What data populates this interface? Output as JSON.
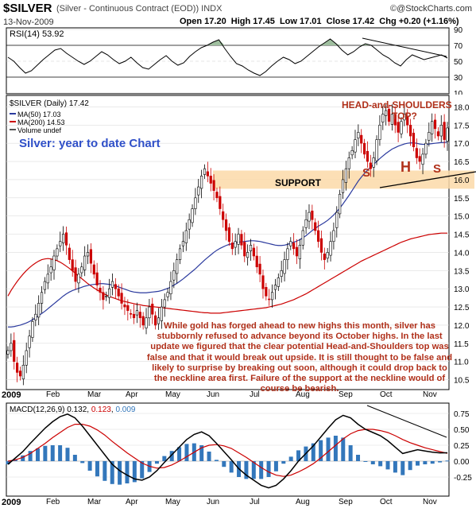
{
  "header": {
    "symbol": "$SILVER",
    "name": "(Silver - Continuous Contract (EOD))",
    "exchange": "INDX",
    "date": "13-Nov-2009",
    "ohlc": "Open 17.20  High 17.45  Low 17.01  Close 17.42  Chg +0.20 (+1.16%)",
    "copyright": "@StockCharts.com",
    "copyright_symbol": "©"
  },
  "colors": {
    "price_up": "#000000",
    "price_down": "#cc0000",
    "ma50": "#2b3a9e",
    "ma200": "#cc0000",
    "rsi_fill": "#9fbf9f",
    "macd_line": "#000000",
    "signal_line": "#cc0000",
    "histogram": "#3377bb",
    "support_band": "#fbd9a8",
    "annotation": "#b0301a",
    "title_blue": "#3050c8"
  },
  "annotations": {
    "chart_title": "Silver: year to date Chart",
    "hs_title_line1": "HEAD-and-SHOULDERS",
    "hs_title_line2": "TOP?",
    "support": "SUPPORT",
    "s_left": "S",
    "h": "H",
    "s_right": "S",
    "comment": "While gold has forged ahead to new highs this month, silver has stubbornly refused to advance beyond its October highs. In the last update we figured that the clear potential Head-and-Shoulders top was false and that it would break out upside. It is still thought to be false and likely to surprise by breaking out soon, although it could drop back to the neckline area first. Failure of the support at the neckline would of course be bearish."
  },
  "chart_data": [
    {
      "type": "line",
      "panel": "rsi",
      "legend": "RSI(14) 53.92",
      "ylim": [
        10,
        90
      ],
      "yticks": [
        10,
        30,
        50,
        70,
        90
      ],
      "levels": [
        30,
        70
      ],
      "grid": true,
      "values": [
        55,
        50,
        42,
        35,
        38,
        45,
        52,
        58,
        64,
        66,
        60,
        55,
        50,
        46,
        50,
        56,
        62,
        58,
        52,
        47,
        50,
        55,
        48,
        42,
        40,
        46,
        52,
        57,
        50,
        45,
        48,
        56,
        62,
        67,
        70,
        74,
        77,
        66,
        56,
        47,
        44,
        39,
        35,
        32,
        37,
        44,
        50,
        55,
        52,
        47,
        50,
        56,
        62,
        68,
        73,
        78,
        72,
        64,
        58,
        62,
        68,
        72,
        70,
        64,
        58,
        54,
        48,
        44,
        52,
        58,
        55,
        52,
        54,
        56,
        58,
        54
      ]
    },
    {
      "type": "candlestick",
      "panel": "price",
      "title": "$SILVER (Daily) 17.42",
      "legend": [
        "MA(50) 17.03",
        "MA(200) 14.53",
        "Volume undef"
      ],
      "ylim": [
        10.25,
        18.25
      ],
      "yticks": [
        10.5,
        11.0,
        11.5,
        12.0,
        12.5,
        13.0,
        13.5,
        14.0,
        14.5,
        15.0,
        15.5,
        16.0,
        16.5,
        17.0,
        17.5,
        18.0
      ],
      "support_band": [
        15.75,
        16.25
      ],
      "grid": true,
      "close": [
        11.3,
        11.5,
        11.0,
        10.7,
        10.6,
        10.9,
        11.3,
        11.7,
        12.1,
        12.3,
        12.6,
        12.9,
        13.2,
        13.4,
        13.6,
        13.9,
        14.1,
        14.3,
        14.5,
        14.2,
        13.8,
        13.5,
        13.2,
        13.4,
        13.6,
        13.9,
        14.0,
        13.7,
        13.4,
        13.1,
        12.9,
        12.7,
        12.8,
        13.0,
        13.2,
        13.0,
        12.8,
        12.6,
        12.5,
        12.4,
        12.3,
        12.2,
        12.4,
        12.2,
        12.0,
        12.2,
        12.5,
        12.3,
        12.0,
        12.2,
        12.5,
        12.7,
        12.9,
        13.2,
        13.5,
        13.8,
        14.1,
        14.3,
        14.6,
        14.9,
        15.2,
        15.5,
        15.8,
        16.1,
        16.3,
        16.1,
        15.9,
        15.7,
        15.5,
        15.2,
        14.9,
        14.6,
        14.3,
        14.1,
        14.3,
        14.5,
        14.2,
        13.9,
        14.0,
        14.2,
        13.9,
        13.6,
        13.4,
        13.0,
        12.8,
        12.7,
        12.9,
        13.1,
        13.3,
        13.5,
        13.8,
        14.1,
        14.3,
        14.1,
        13.9,
        14.2,
        14.6,
        14.9,
        15.1,
        14.9,
        14.6,
        14.3,
        14.0,
        13.8,
        14.0,
        14.3,
        14.6,
        15.1,
        15.6,
        16.0,
        16.3,
        16.6,
        16.8,
        17.1,
        17.3,
        17.0,
        16.7,
        16.5,
        16.3,
        16.6,
        17.1,
        17.5,
        17.8,
        17.9,
        17.6,
        17.8,
        17.5,
        17.3,
        17.6,
        17.8,
        17.5,
        17.2,
        16.9,
        16.6,
        16.5,
        16.7,
        17.0,
        17.3,
        17.6,
        17.4,
        17.2,
        17.5,
        17.1,
        17.42
      ],
      "ma50": [
        11.95,
        11.95,
        11.96,
        11.98,
        12.0,
        12.03,
        12.06,
        12.1,
        12.15,
        12.2,
        12.26,
        12.32,
        12.38,
        12.45,
        12.52,
        12.59,
        12.66,
        12.73,
        12.8,
        12.86,
        12.91,
        12.95,
        12.98,
        13.01,
        13.04,
        13.07,
        13.09,
        13.11,
        13.12,
        13.13,
        13.14,
        13.14,
        13.13,
        13.12,
        13.1,
        13.08,
        13.05,
        13.02,
        12.99,
        12.96,
        12.93,
        12.91,
        12.9,
        12.89,
        12.89,
        12.89,
        12.9,
        12.91,
        12.92,
        12.93,
        12.95,
        12.98,
        13.01,
        13.05,
        13.1,
        13.15,
        13.21,
        13.27,
        13.34,
        13.41,
        13.48,
        13.55,
        13.63,
        13.71,
        13.79,
        13.86,
        13.93,
        14.0,
        14.06,
        14.11,
        14.15,
        14.19,
        14.22,
        14.24,
        14.26,
        14.28,
        14.29,
        14.3,
        14.31,
        14.32,
        14.32,
        14.31,
        14.3,
        14.28,
        14.26,
        14.24,
        14.22,
        14.2,
        14.19,
        14.19,
        14.2,
        14.22,
        14.25,
        14.28,
        14.31,
        14.35,
        14.4,
        14.46,
        14.53,
        14.6,
        14.66,
        14.72,
        14.77,
        14.82,
        14.88,
        14.95,
        15.03,
        15.12,
        15.22,
        15.33,
        15.45,
        15.57,
        15.7,
        15.83,
        15.96,
        16.07,
        16.17,
        16.26,
        16.34,
        16.42,
        16.5,
        16.58,
        16.65,
        16.72,
        16.78,
        16.84,
        16.88,
        16.92,
        16.95,
        16.98,
        17.0,
        17.01,
        17.01,
        17.0,
        16.98,
        16.97,
        16.97,
        16.98,
        16.99,
        17.0,
        17.01,
        17.02,
        17.02,
        17.03
      ],
      "ma200": [
        12.8,
        12.95,
        13.08,
        13.2,
        13.31,
        13.41,
        13.5,
        13.58,
        13.65,
        13.71,
        13.76,
        13.8,
        13.82,
        13.83,
        13.82,
        13.8,
        13.77,
        13.73,
        13.68,
        13.62,
        13.56,
        13.49,
        13.42,
        13.35,
        13.28,
        13.21,
        13.14,
        13.08,
        13.02,
        12.97,
        12.92,
        12.87,
        12.83,
        12.79,
        12.76,
        12.73,
        12.7,
        12.67,
        12.65,
        12.63,
        12.61,
        12.59,
        12.57,
        12.56,
        12.54,
        12.53,
        12.52,
        12.51,
        12.5,
        12.49,
        12.48,
        12.47,
        12.46,
        12.45,
        12.44,
        12.43,
        12.42,
        12.41,
        12.4,
        12.39,
        12.38,
        12.37,
        12.36,
        12.35,
        12.34,
        12.34,
        12.33,
        12.33,
        12.33,
        12.33,
        12.34,
        12.35,
        12.36,
        12.37,
        12.38,
        12.39,
        12.4,
        12.41,
        12.42,
        12.43,
        12.44,
        12.45,
        12.46,
        12.47,
        12.48,
        12.5,
        12.52,
        12.54,
        12.56,
        12.58,
        12.61,
        12.64,
        12.67,
        12.7,
        12.74,
        12.78,
        12.82,
        12.86,
        12.91,
        12.96,
        13.01,
        13.06,
        13.11,
        13.16,
        13.21,
        13.26,
        13.31,
        13.36,
        13.41,
        13.46,
        13.51,
        13.56,
        13.61,
        13.66,
        13.71,
        13.76,
        13.8,
        13.84,
        13.88,
        13.92,
        13.96,
        14.0,
        14.04,
        14.08,
        14.12,
        14.16,
        14.2,
        14.24,
        14.28,
        14.31,
        14.34,
        14.37,
        14.39,
        14.41,
        14.43,
        14.45,
        14.47,
        14.49,
        14.5,
        14.51,
        14.52,
        14.53,
        14.53,
        14.53
      ]
    },
    {
      "type": "line",
      "panel": "macd",
      "legend": {
        "label": "MACD(12,26,9)",
        "macd": "0.132",
        "signal": "0.123",
        "hist": "0.009"
      },
      "ylim": [
        -0.5,
        0.85
      ],
      "yticks": [
        -0.25,
        0.0,
        0.25,
        0.5,
        0.75
      ],
      "grid": true,
      "macd": [
        -0.05,
        0.05,
        0.15,
        0.28,
        0.4,
        0.52,
        0.62,
        0.7,
        0.74,
        0.68,
        0.55,
        0.4,
        0.25,
        0.1,
        -0.05,
        -0.15,
        -0.22,
        -0.28,
        -0.3,
        -0.25,
        -0.15,
        -0.02,
        0.1,
        0.22,
        0.34,
        0.42,
        0.46,
        0.4,
        0.28,
        0.15,
        0.02,
        -0.12,
        -0.22,
        -0.3,
        -0.38,
        -0.42,
        -0.38,
        -0.28,
        -0.15,
        0.0,
        0.12,
        0.24,
        0.38,
        0.52,
        0.65,
        0.72,
        0.68,
        0.58,
        0.5,
        0.45,
        0.4,
        0.32,
        0.22,
        0.12,
        0.15,
        0.18,
        0.16,
        0.14,
        0.13,
        0.132
      ],
      "signal": [
        0.0,
        0.02,
        0.06,
        0.12,
        0.2,
        0.28,
        0.37,
        0.45,
        0.53,
        0.58,
        0.58,
        0.55,
        0.49,
        0.41,
        0.31,
        0.22,
        0.13,
        0.05,
        -0.03,
        -0.08,
        -0.11,
        -0.1,
        -0.06,
        0.0,
        0.07,
        0.14,
        0.21,
        0.25,
        0.26,
        0.24,
        0.2,
        0.13,
        0.06,
        -0.02,
        -0.1,
        -0.17,
        -0.22,
        -0.24,
        -0.22,
        -0.17,
        -0.11,
        -0.04,
        0.05,
        0.15,
        0.25,
        0.35,
        0.43,
        0.48,
        0.5,
        0.5,
        0.48,
        0.45,
        0.4,
        0.34,
        0.29,
        0.25,
        0.21,
        0.18,
        0.15,
        0.123
      ]
    }
  ],
  "months": [
    "Feb",
    "Mar",
    "Apr",
    "May",
    "Jun",
    "Jul",
    "Aug",
    "Sep",
    "Oct",
    "Nov"
  ],
  "year_label": "2009"
}
